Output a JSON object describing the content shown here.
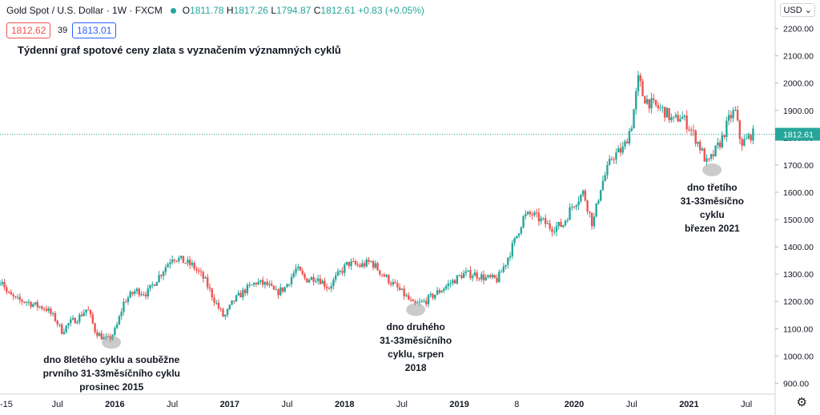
{
  "header": {
    "symbol": "Gold Spot / U.S. Dollar · 1W · FXCM",
    "open_label": "O",
    "open": "1811.78",
    "high_label": "H",
    "high": "1817.26",
    "low_label": "L",
    "low": "1794.87",
    "close_label": "C",
    "close": "1812.61",
    "change": "+0.83 (+0.05%)"
  },
  "quote": {
    "bid": "1812.62",
    "spread": "39",
    "ask": "1813.01"
  },
  "currency_button": "USD",
  "colors": {
    "up": "#26a69a",
    "down": "#ef5350",
    "price_line": "#26a69a"
  },
  "chart_data": {
    "type": "candlestick",
    "title": "Týdenní graf spotové ceny zlata s vyznačením významných cyklů",
    "y_ticks": [
      "900.00",
      "1000.00",
      "1100.00",
      "1200.00",
      "1300.00",
      "1400.00",
      "1500.00",
      "1600.00",
      "1700.00",
      "1800.00",
      "1900.00",
      "2000.00",
      "2100.00",
      "2200.00"
    ],
    "ylim": [
      860,
      2240
    ],
    "x_ticks": [
      {
        "label": "-15",
        "t": 2015.0
      },
      {
        "label": "Jul",
        "t": 2015.5
      },
      {
        "label": "2016",
        "t": 2016.0
      },
      {
        "label": "Jul",
        "t": 2016.5
      },
      {
        "label": "2017",
        "t": 2017.0
      },
      {
        "label": "Jul",
        "t": 2017.5
      },
      {
        "label": "2018",
        "t": 2018.0
      },
      {
        "label": "Jul",
        "t": 2018.5
      },
      {
        "label": "2019",
        "t": 2019.0
      },
      {
        "label": "8",
        "t": 2019.5
      },
      {
        "label": "2020",
        "t": 2020.0
      },
      {
        "label": "Jul",
        "t": 2020.5
      },
      {
        "label": "2021",
        "t": 2021.0
      },
      {
        "label": "Jul",
        "t": 2021.5
      }
    ],
    "xlim": [
      2015.0,
      2021.75
    ],
    "current_price": "1812.61",
    "price_path": [
      [
        2015.0,
        1260
      ],
      [
        2015.03,
        1290
      ],
      [
        2015.08,
        1230
      ],
      [
        2015.16,
        1205
      ],
      [
        2015.25,
        1200
      ],
      [
        2015.33,
        1185
      ],
      [
        2015.42,
        1175
      ],
      [
        2015.5,
        1135
      ],
      [
        2015.56,
        1090
      ],
      [
        2015.62,
        1120
      ],
      [
        2015.7,
        1140
      ],
      [
        2015.78,
        1175
      ],
      [
        2015.85,
        1090
      ],
      [
        2015.92,
        1065
      ],
      [
        2015.97,
        1060
      ],
      [
        2016.03,
        1100
      ],
      [
        2016.1,
        1200
      ],
      [
        2016.2,
        1240
      ],
      [
        2016.3,
        1230
      ],
      [
        2016.38,
        1280
      ],
      [
        2016.45,
        1320
      ],
      [
        2016.52,
        1365
      ],
      [
        2016.6,
        1350
      ],
      [
        2016.7,
        1330
      ],
      [
        2016.8,
        1280
      ],
      [
        2016.88,
        1210
      ],
      [
        2016.97,
        1140
      ],
      [
        2017.05,
        1200
      ],
      [
        2017.15,
        1240
      ],
      [
        2017.25,
        1270
      ],
      [
        2017.35,
        1260
      ],
      [
        2017.42,
        1230
      ],
      [
        2017.5,
        1250
      ],
      [
        2017.6,
        1320
      ],
      [
        2017.68,
        1280
      ],
      [
        2017.78,
        1290
      ],
      [
        2017.88,
        1250
      ],
      [
        2017.95,
        1290
      ],
      [
        2018.05,
        1340
      ],
      [
        2018.15,
        1330
      ],
      [
        2018.25,
        1345
      ],
      [
        2018.35,
        1300
      ],
      [
        2018.45,
        1260
      ],
      [
        2018.55,
        1220
      ],
      [
        2018.62,
        1185
      ],
      [
        2018.72,
        1200
      ],
      [
        2018.82,
        1230
      ],
      [
        2018.95,
        1270
      ],
      [
        2019.05,
        1300
      ],
      [
        2019.15,
        1300
      ],
      [
        2019.25,
        1285
      ],
      [
        2019.35,
        1280
      ],
      [
        2019.42,
        1340
      ],
      [
        2019.5,
        1420
      ],
      [
        2019.58,
        1510
      ],
      [
        2019.65,
        1520
      ],
      [
        2019.72,
        1500
      ],
      [
        2019.82,
        1470
      ],
      [
        2019.92,
        1480
      ],
      [
        2020.0,
        1550
      ],
      [
        2020.1,
        1600
      ],
      [
        2020.18,
        1480
      ],
      [
        2020.25,
        1620
      ],
      [
        2020.35,
        1730
      ],
      [
        2020.45,
        1760
      ],
      [
        2020.52,
        1850
      ],
      [
        2020.58,
        2020
      ],
      [
        2020.62,
        1950
      ],
      [
        2020.7,
        1920
      ],
      [
        2020.8,
        1900
      ],
      [
        2020.88,
        1860
      ],
      [
        2020.95,
        1880
      ],
      [
        2021.02,
        1840
      ],
      [
        2021.1,
        1780
      ],
      [
        2021.18,
        1700
      ],
      [
        2021.22,
        1730
      ],
      [
        2021.3,
        1790
      ],
      [
        2021.37,
        1870
      ],
      [
        2021.42,
        1900
      ],
      [
        2021.47,
        1780
      ],
      [
        2021.52,
        1790
      ],
      [
        2021.56,
        1812
      ]
    ],
    "annotations": [
      {
        "text": "dno 8letého cyklu a souběžne\nprvního 31-33měsíčního cyklu\nprosinec 2015",
        "t": 2015.97,
        "price": 1050
      },
      {
        "text": "dno druhého\n31-33měsíčního\ncyklu, srpen\n2018",
        "t": 2018.62,
        "price": 1170
      },
      {
        "text": "dno třetího\n31-33měsíčno\ncyklu\nbřezen 2021",
        "t": 2021.2,
        "price": 1682
      }
    ]
  }
}
